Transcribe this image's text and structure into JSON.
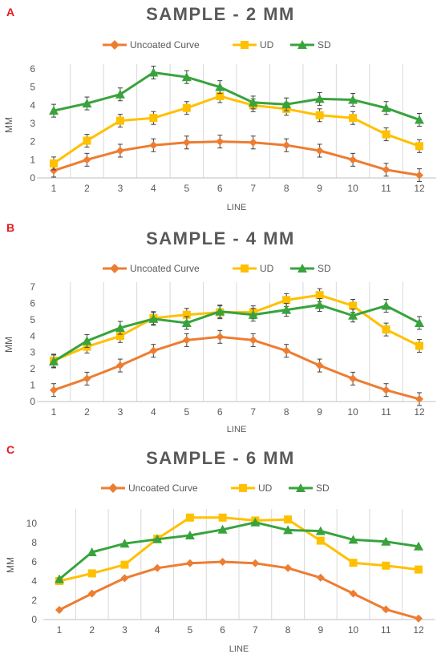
{
  "chart_data": [
    {
      "type": "line",
      "panel": "A",
      "title": "SAMPLE - 2 MM",
      "xlabel": "LINE",
      "ylabel": "MM",
      "categories": [
        "1",
        "2",
        "3",
        "4",
        "5",
        "6",
        "7",
        "8",
        "9",
        "10",
        "11",
        "12"
      ],
      "ylim": [
        0,
        6
      ],
      "yticks": [
        "0",
        "1",
        "2",
        "3",
        "4",
        "5",
        "6"
      ],
      "grid": "vertical",
      "legend_position": "top",
      "error_bars": true,
      "series": [
        {
          "name": "Uncoated Curve",
          "color": "#ed7d31",
          "marker": "diamond",
          "values": [
            0.4,
            1.0,
            1.5,
            1.8,
            1.95,
            2.0,
            1.95,
            1.8,
            1.5,
            1.0,
            0.45,
            0.15
          ]
        },
        {
          "name": "UD",
          "color": "#ffc000",
          "marker": "square",
          "values": [
            0.8,
            2.05,
            3.15,
            3.3,
            3.85,
            4.5,
            4.0,
            3.8,
            3.45,
            3.3,
            2.4,
            1.75
          ]
        },
        {
          "name": "SD",
          "color": "#38a33c",
          "marker": "triangle",
          "values": [
            3.7,
            4.1,
            4.6,
            5.8,
            5.55,
            5.0,
            4.15,
            4.05,
            4.35,
            4.3,
            3.85,
            3.2
          ]
        }
      ]
    },
    {
      "type": "line",
      "panel": "B",
      "title": "SAMPLE - 4 MM",
      "xlabel": "LINE",
      "ylabel": "MM",
      "categories": [
        "1",
        "2",
        "3",
        "4",
        "5",
        "6",
        "7",
        "8",
        "9",
        "10",
        "11",
        "12"
      ],
      "ylim": [
        0,
        7
      ],
      "yticks": [
        "0",
        "1",
        "2",
        "3",
        "4",
        "5",
        "6",
        "7"
      ],
      "grid": "vertical",
      "legend_position": "top",
      "error_bars": true,
      "series": [
        {
          "name": "Uncoated Curve",
          "color": "#ed7d31",
          "marker": "diamond",
          "values": [
            0.7,
            1.4,
            2.2,
            3.1,
            3.75,
            3.95,
            3.75,
            3.1,
            2.2,
            1.4,
            0.7,
            0.15
          ]
        },
        {
          "name": "UD",
          "color": "#ffc000",
          "marker": "square",
          "values": [
            2.5,
            3.35,
            4.0,
            5.1,
            5.3,
            5.45,
            5.45,
            6.2,
            6.5,
            5.85,
            4.4,
            3.4
          ]
        },
        {
          "name": "SD",
          "color": "#38a33c",
          "marker": "triangle",
          "values": [
            2.45,
            3.7,
            4.5,
            5.05,
            4.8,
            5.5,
            5.3,
            5.6,
            5.9,
            5.25,
            5.85,
            4.8
          ]
        }
      ]
    },
    {
      "type": "line",
      "panel": "C",
      "title": "SAMPLE - 6 MM",
      "xlabel": "LINE",
      "ylabel": "MM",
      "categories": [
        "1",
        "2",
        "3",
        "4",
        "5",
        "6",
        "7",
        "8",
        "9",
        "10",
        "11",
        "12"
      ],
      "ylim": [
        0,
        11
      ],
      "yticks": [
        "0",
        "2",
        "4",
        "6",
        "8",
        "10"
      ],
      "grid": "vertical",
      "legend_position": "top",
      "error_bars": false,
      "series": [
        {
          "name": "Uncoated Curve",
          "color": "#ed7d31",
          "marker": "diamond",
          "values": [
            1.0,
            2.7,
            4.3,
            5.35,
            5.85,
            6.0,
            5.85,
            5.35,
            4.35,
            2.7,
            1.05,
            0.1
          ]
        },
        {
          "name": "UD",
          "color": "#ffc000",
          "marker": "square",
          "values": [
            4.0,
            4.8,
            5.7,
            8.4,
            10.6,
            10.6,
            10.3,
            10.4,
            8.2,
            5.9,
            5.6,
            5.2
          ]
        },
        {
          "name": "SD",
          "color": "#38a33c",
          "marker": "triangle",
          "values": [
            4.2,
            7.0,
            7.9,
            8.35,
            8.75,
            9.35,
            10.1,
            9.3,
            9.2,
            8.3,
            8.1,
            7.6
          ]
        }
      ]
    }
  ]
}
